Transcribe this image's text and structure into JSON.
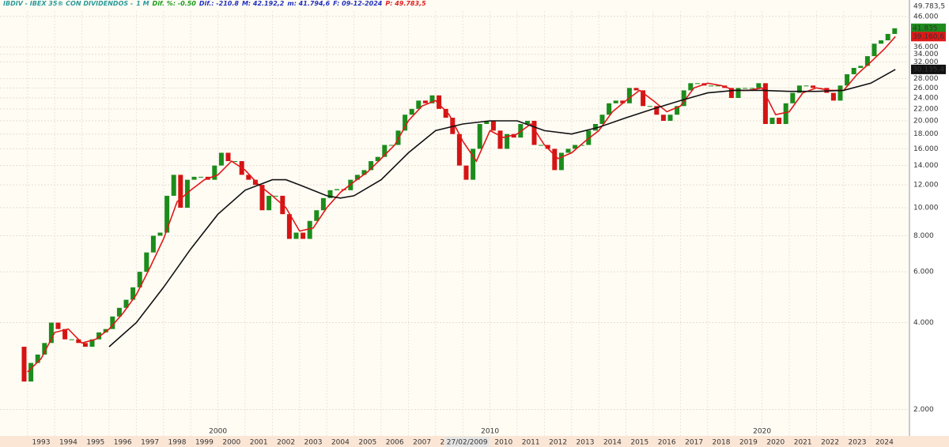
{
  "chart_data": {
    "type": "candlestick",
    "log_scale": true,
    "grid": true,
    "header": [
      {
        "text": "IBDIV - IBEX 35® CON DIVIDENDOS -",
        "color": "#2a9a9a"
      },
      {
        "text": "1 M",
        "color": "#2a9a9a"
      },
      {
        "text": "Dif. %: -0.50",
        "color": "#1a9a1a"
      },
      {
        "text": "Dif.: -210.8",
        "color": "#2030c0"
      },
      {
        "text": "M: 42.192,2",
        "color": "#2030c0"
      },
      {
        "text": "m: 41.794,6",
        "color": "#2030c0"
      },
      {
        "text": "F: 09-12-2024",
        "color": "#2030c0"
      },
      {
        "text": "P: 49.783,5",
        "color": "#e02020"
      }
    ],
    "top_label": {
      "value": 49783.5,
      "label": "49.783,5"
    },
    "cursor_label": "27/02/2009",
    "up_color": "#1c8c1c",
    "down_color": "#d41414",
    "x": [
      1992.625,
      1992.875,
      1993.125,
      1993.375,
      1993.625,
      1993.875,
      1994.125,
      1994.375,
      1994.625,
      1994.875,
      1995.125,
      1995.375,
      1995.625,
      1995.875,
      1996.125,
      1996.375,
      1996.625,
      1996.875,
      1997.125,
      1997.375,
      1997.625,
      1997.875,
      1998.125,
      1998.375,
      1998.625,
      1998.875,
      1999.125,
      1999.375,
      1999.625,
      1999.875,
      2000.125,
      2000.375,
      2000.625,
      2000.875,
      2001.125,
      2001.375,
      2001.625,
      2001.875,
      2002.125,
      2002.375,
      2002.625,
      2002.875,
      2003.125,
      2003.375,
      2003.625,
      2003.875,
      2004.125,
      2004.375,
      2004.625,
      2004.875,
      2005.125,
      2005.375,
      2005.625,
      2005.875,
      2006.125,
      2006.375,
      2006.625,
      2006.875,
      2007.125,
      2007.375,
      2007.625,
      2007.875,
      2008.125,
      2008.375,
      2008.625,
      2008.875,
      2009.125,
      2009.375,
      2009.625,
      2009.875,
      2010.125,
      2010.375,
      2010.625,
      2010.875,
      2011.125,
      2011.375,
      2011.625,
      2011.875,
      2012.125,
      2012.375,
      2012.625,
      2012.875,
      2013.125,
      2013.375,
      2013.625,
      2013.875,
      2014.125,
      2014.375,
      2014.625,
      2014.875,
      2015.125,
      2015.375,
      2015.625,
      2015.875,
      2016.125,
      2016.375,
      2016.625,
      2016.875,
      2017.125,
      2017.375,
      2017.625,
      2017.875,
      2018.125,
      2018.375,
      2018.625,
      2018.875,
      2019.125,
      2019.375,
      2019.625,
      2019.875,
      2020.125,
      2020.375,
      2020.625,
      2020.875,
      2021.125,
      2021.375,
      2021.625,
      2021.875,
      2022.125,
      2022.375,
      2022.625,
      2022.875,
      2023.125,
      2023.375,
      2023.625,
      2023.875,
      2024.125,
      2024.375,
      2024.625,
      2024.875
    ],
    "close": [
      3300,
      2500,
      2900,
      3100,
      3400,
      4000,
      3800,
      3500,
      3500,
      3400,
      3300,
      3500,
      3700,
      3800,
      4200,
      4500,
      4800,
      5300,
      6000,
      7000,
      8000,
      8200,
      11000,
      13000,
      10000,
      12500,
      12800,
      12800,
      12500,
      14000,
      15500,
      14500,
      14500,
      13000,
      12500,
      12000,
      9800,
      11000,
      11000,
      9500,
      7800,
      8200,
      7800,
      9000,
      9800,
      10800,
      11500,
      11600,
      11500,
      12500,
      13000,
      13500,
      14500,
      15000,
      16500,
      16500,
      18500,
      21000,
      22000,
      23500,
      23000,
      24500,
      22000,
      20500,
      18000,
      14000,
      12500,
      16000,
      19500,
      20000,
      18500,
      16000,
      18000,
      17500,
      19500,
      20000,
      16500,
      16500,
      16000,
      13500,
      15500,
      16000,
      16500,
      16500,
      18500,
      19500,
      21000,
      23000,
      23500,
      23000,
      26000,
      25500,
      22500,
      22500,
      21000,
      20000,
      21000,
      22500,
      25500,
      27000,
      27000,
      26500,
      26500,
      26500,
      26000,
      24000,
      26000,
      26000,
      26000,
      27000,
      19500,
      20500,
      19500,
      23000,
      25000,
      26500,
      26500,
      26000,
      26000,
      25000,
      23500,
      26500,
      29000,
      30500,
      31000,
      33500,
      37000,
      38000,
      40000,
      41835
    ],
    "last_close": {
      "value": 41835,
      "label": "41.835"
    },
    "series": [
      {
        "color": "#e01818",
        "x": [
          1993.0,
          1993.5,
          1994.0,
          1994.5,
          1995.0,
          1995.5,
          1996.0,
          1996.5,
          1997.0,
          1997.5,
          1998.0,
          1998.5,
          1999.0,
          1999.5,
          2000.0,
          2000.5,
          2001.0,
          2001.5,
          2002.0,
          2002.5,
          2003.0,
          2003.5,
          2004.0,
          2004.5,
          2005.0,
          2005.5,
          2006.0,
          2006.5,
          2007.0,
          2007.5,
          2008.0,
          2008.5,
          2009.0,
          2009.5,
          2010.0,
          2010.5,
          2011.0,
          2011.5,
          2012.0,
          2012.5,
          2013.0,
          2013.5,
          2014.0,
          2014.5,
          2015.0,
          2015.5,
          2016.0,
          2016.5,
          2017.0,
          2017.5,
          2018.0,
          2018.5,
          2019.0,
          2019.5,
          2020.0,
          2020.5,
          2021.0,
          2021.5,
          2022.0,
          2022.5,
          2023.0,
          2023.5,
          2024.0,
          2024.5,
          2024.9
        ],
        "values": [
          2700,
          3000,
          3700,
          3800,
          3400,
          3500,
          3800,
          4300,
          5000,
          6200,
          7800,
          10500,
          11500,
          12500,
          13000,
          14500,
          13500,
          12000,
          11000,
          10000,
          8300,
          8500,
          10000,
          11300,
          12300,
          13300,
          14800,
          16500,
          20000,
          22500,
          23500,
          21000,
          17000,
          14500,
          18500,
          17500,
          18000,
          19500,
          16500,
          14800,
          15500,
          17000,
          18500,
          21500,
          23500,
          25500,
          23500,
          21500,
          22500,
          26000,
          27000,
          26500,
          25500,
          25500,
          26000,
          21000,
          21500,
          25000,
          26000,
          25500,
          25500,
          29000,
          32000,
          35500,
          39160.6
        ],
        "last": {
          "value": 39160.6,
          "label": "39.160,6"
        }
      },
      {
        "color": "#111111",
        "x": [
          1996.0,
          1997.0,
          1998.0,
          1999.0,
          2000.0,
          2001.0,
          2002.0,
          2002.5,
          2003.0,
          2004.0,
          2004.5,
          2005.0,
          2006.0,
          2007.0,
          2008.0,
          2009.0,
          2010.0,
          2011.0,
          2012.0,
          2013.0,
          2014.0,
          2015.0,
          2016.0,
          2017.0,
          2018.0,
          2019.0,
          2020.0,
          2021.0,
          2022.0,
          2023.0,
          2024.0,
          2024.9
        ],
        "values": [
          3300,
          4000,
          5300,
          7200,
          9500,
          11500,
          12500,
          12500,
          12000,
          11000,
          10800,
          11000,
          12500,
          15500,
          18500,
          19500,
          20000,
          20000,
          18500,
          18000,
          19000,
          20500,
          22000,
          23500,
          25000,
          25500,
          25500,
          25300,
          25300,
          25500,
          27000,
          30135.4
        ],
        "last": {
          "value": 30135.4,
          "label": "30.135,4"
        }
      }
    ],
    "ylim": [
      1620,
      48000
    ],
    "yticks": [
      {
        "value": 2000,
        "label": "2.000"
      },
      {
        "value": 4000,
        "label": "4.000"
      },
      {
        "value": 6000,
        "label": "6.000"
      },
      {
        "value": 8000,
        "label": "8.000"
      },
      {
        "value": 10000,
        "label": "10.000"
      },
      {
        "value": 12000,
        "label": "12.000"
      },
      {
        "value": 14000,
        "label": "14.000"
      },
      {
        "value": 16000,
        "label": "16.000"
      },
      {
        "value": 18000,
        "label": "18.000"
      },
      {
        "value": 20000,
        "label": "20.000"
      },
      {
        "value": 22000,
        "label": "22.000"
      },
      {
        "value": 24000,
        "label": "24.000"
      },
      {
        "value": 26000,
        "label": "26.000"
      },
      {
        "value": 28000,
        "label": "28.000"
      },
      {
        "value": 32000,
        "label": "32.000"
      },
      {
        "value": 34000,
        "label": "34.000"
      },
      {
        "value": 36000,
        "label": "36.000"
      },
      {
        "value": 46000,
        "label": "46.000"
      }
    ],
    "xlim": [
      1992.0,
      2025.1
    ],
    "xticks": [
      1993,
      1994,
      1995,
      1996,
      1997,
      1998,
      1999,
      2000,
      2001,
      2002,
      2003,
      2004,
      2005,
      2006,
      2007,
      2008,
      2009,
      2010,
      2011,
      2012,
      2013,
      2014,
      2015,
      2016,
      2017,
      2018,
      2019,
      2020,
      2021,
      2022,
      2023,
      2024
    ],
    "decade_ticks": [
      2000,
      2010,
      2020
    ]
  }
}
